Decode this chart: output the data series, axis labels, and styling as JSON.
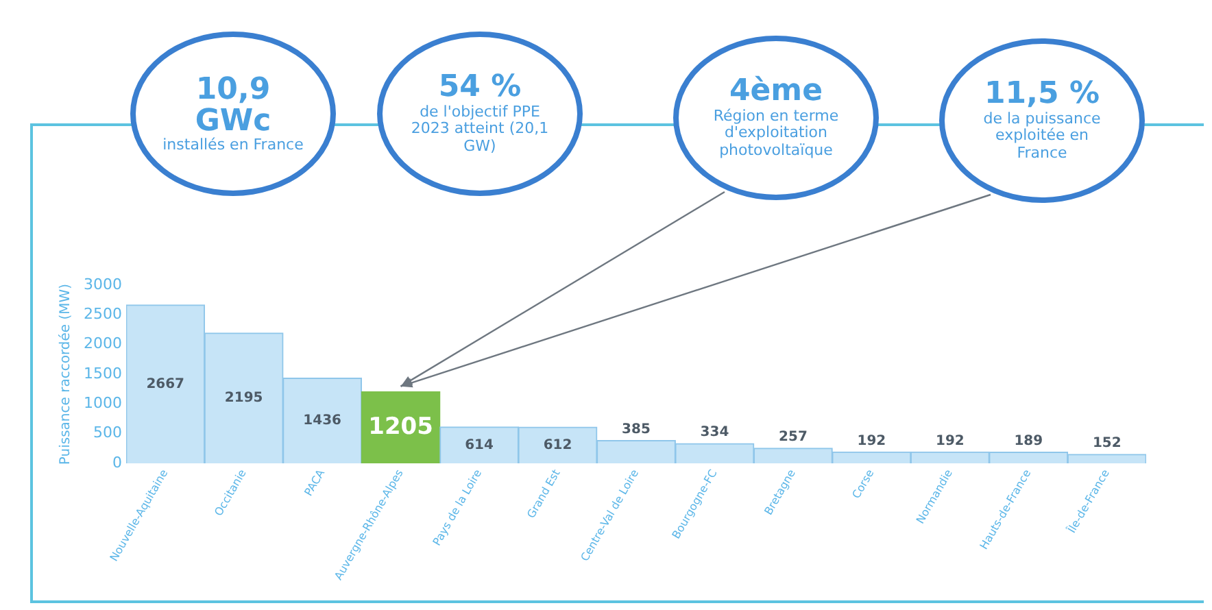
{
  "chart_data": {
    "type": "bar",
    "ylabel": "Puissance raccordée (MW)",
    "categories": [
      "Nouvelle-Aquitaine",
      "Occitanie",
      "PACA",
      "Auvergne-Rhône-Alpes",
      "Pays de la Loire",
      "Grand Est",
      "Centre-Val de Loire",
      "Bourgogne-FC",
      "Bretagne",
      "Corse",
      "Normandie",
      "Hauts-de-France",
      "Île-de-France"
    ],
    "values": [
      2667,
      2195,
      1436,
      1205,
      614,
      612,
      385,
      334,
      257,
      192,
      192,
      189,
      152
    ],
    "colors": [
      "#c6e4f7",
      "#c6e4f7",
      "#c6e4f7",
      "#7cc04a",
      "#c6e4f7",
      "#c6e4f7",
      "#c6e4f7",
      "#c6e4f7",
      "#c6e4f7",
      "#c6e4f7",
      "#c6e4f7",
      "#c6e4f7",
      "#c6e4f7"
    ],
    "ylim": [
      0,
      3000
    ],
    "yticks": [
      0,
      500,
      1000,
      1500,
      2000,
      2500,
      3000
    ],
    "data_labels": true,
    "grid": false,
    "legend": false,
    "annotations": [
      "10,9 GWc\ninstallés en France",
      "54 %\nde l'objectif PPE 2023 atteint (20,1 GW)",
      {
        "text": "4ème\nRégion en terme d'exploitation photovoltaïque",
        "x": "Auvergne-Rhône-Alpes",
        "y": 1205
      },
      {
        "text": "11,5 %\nde la puissance exploitée en France",
        "x": "Auvergne-Rhône-Alpes",
        "y": 1205
      }
    ]
  }
}
